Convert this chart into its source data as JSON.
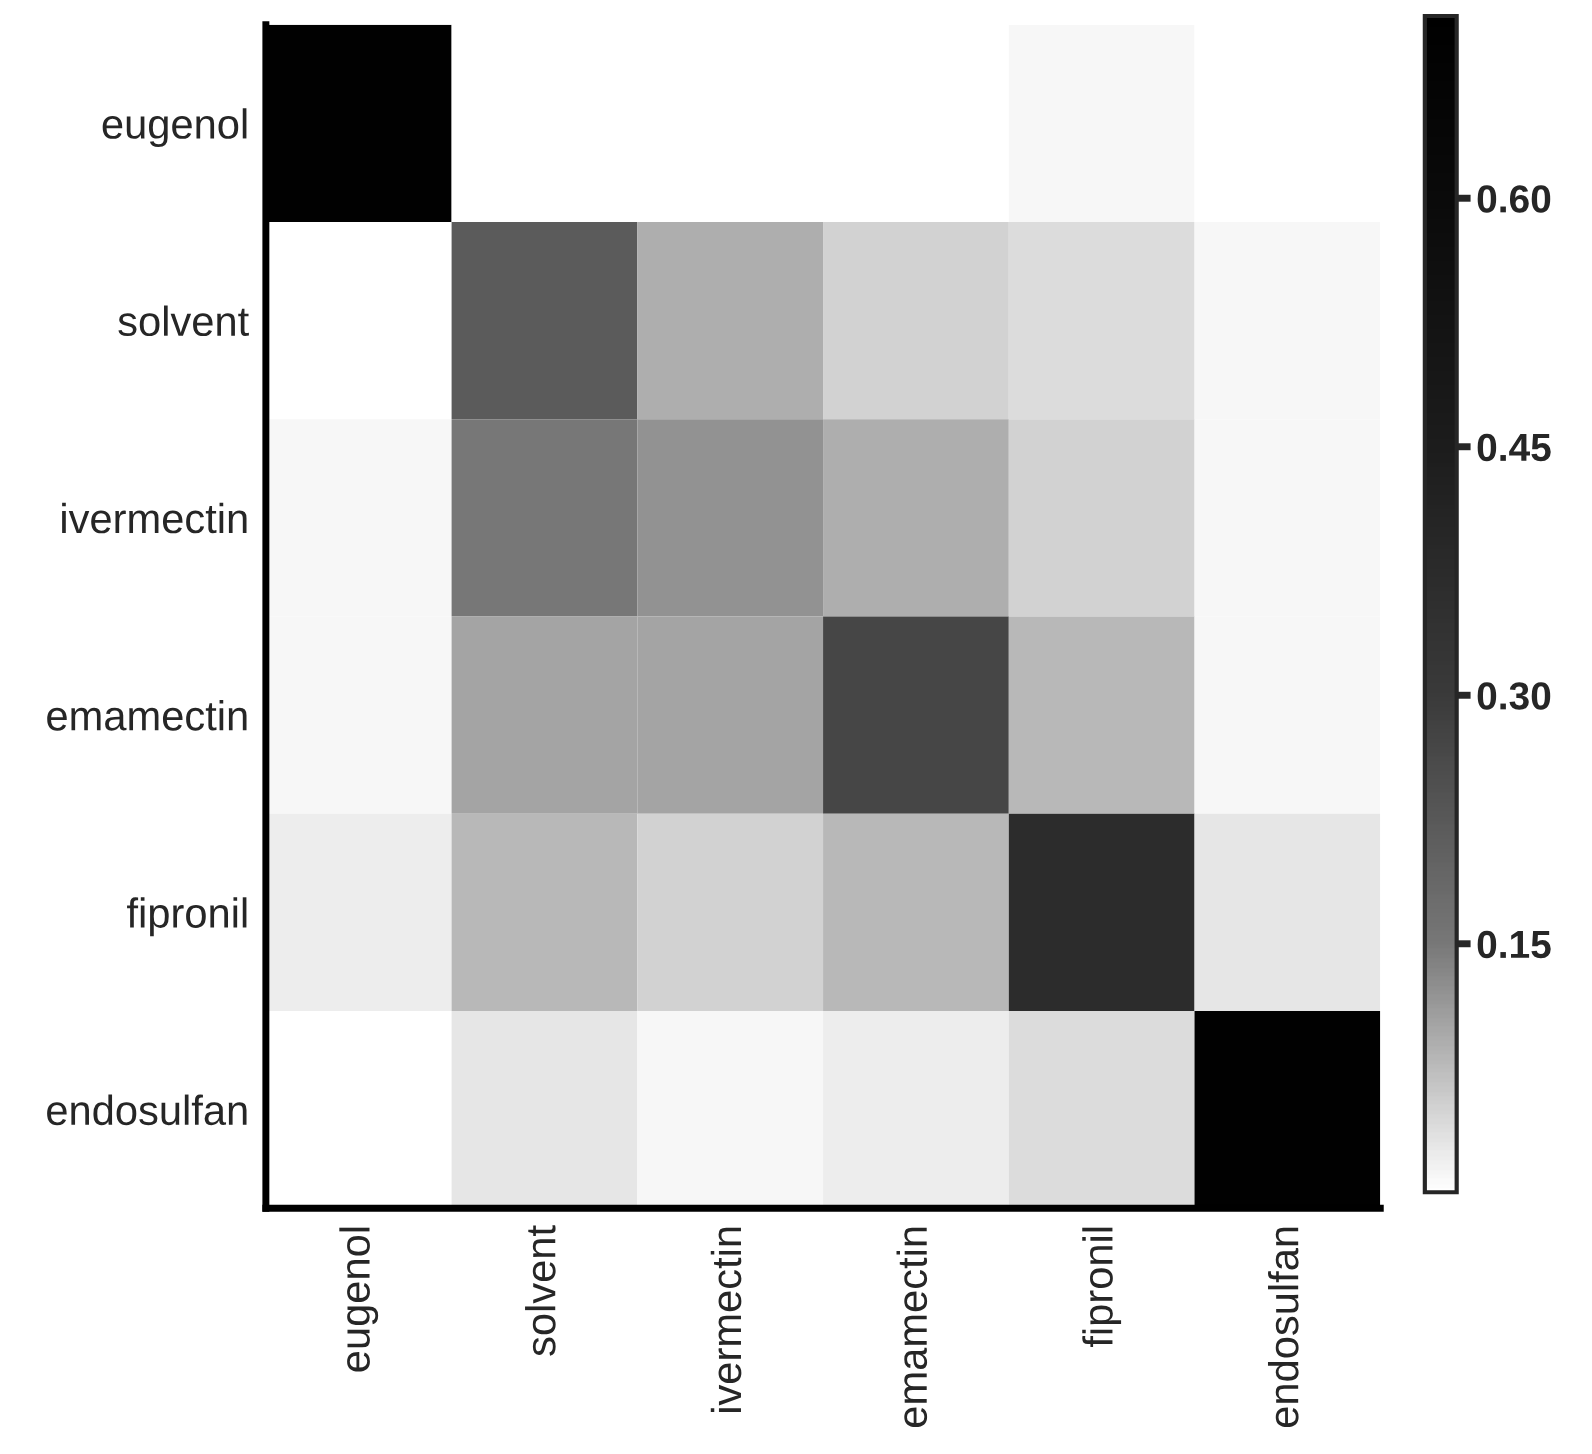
{
  "chart_data": {
    "type": "heatmap",
    "categories": [
      "eugenol",
      "solvent",
      "ivermectin",
      "emamectin",
      "fipronil",
      "endosulfan"
    ],
    "y_categories": [
      "eugenol",
      "solvent",
      "ivermectin",
      "emamectin",
      "fipronil",
      "endosulfan"
    ],
    "cells": [
      [
        0.7,
        0.0,
        0.0,
        0.0,
        0.01,
        0.0
      ],
      [
        0.0,
        0.22,
        0.09,
        0.05,
        0.04,
        0.01
      ],
      [
        0.01,
        0.15,
        0.12,
        0.09,
        0.05,
        0.01
      ],
      [
        0.01,
        0.1,
        0.1,
        0.27,
        0.08,
        0.01
      ],
      [
        0.02,
        0.08,
        0.05,
        0.08,
        0.37,
        0.03
      ],
      [
        0.0,
        0.03,
        0.01,
        0.02,
        0.04,
        0.7
      ]
    ],
    "clim": [
      0,
      0.71
    ],
    "cticks": [
      {
        "value": 0.15,
        "label": "0.15"
      },
      {
        "value": 0.3,
        "label": "0.30"
      },
      {
        "value": 0.45,
        "label": "0.45"
      },
      {
        "value": 0.6,
        "label": "0.60"
      }
    ]
  }
}
